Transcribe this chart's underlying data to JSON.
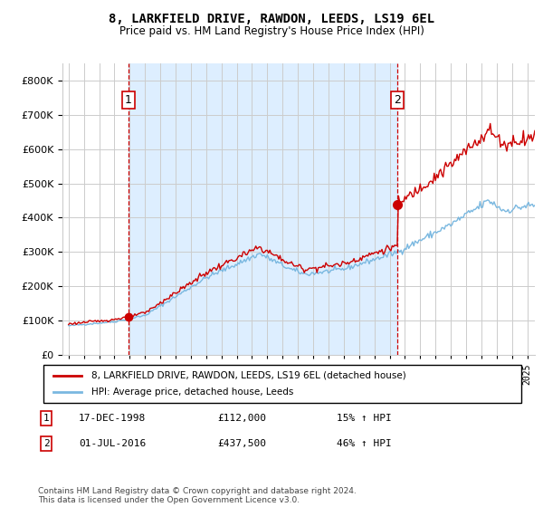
{
  "title": "8, LARKFIELD DRIVE, RAWDON, LEEDS, LS19 6EL",
  "subtitle": "Price paid vs. HM Land Registry's House Price Index (HPI)",
  "legend_line1": "8, LARKFIELD DRIVE, RAWDON, LEEDS, LS19 6EL (detached house)",
  "legend_line2": "HPI: Average price, detached house, Leeds",
  "purchase1_date": "17-DEC-1998",
  "purchase1_price": 112000,
  "purchase1_label": "15% ↑ HPI",
  "purchase2_date": "01-JUL-2016",
  "purchase2_price": 437500,
  "purchase2_label": "46% ↑ HPI",
  "footnote": "Contains HM Land Registry data © Crown copyright and database right 2024.\nThis data is licensed under the Open Government Licence v3.0.",
  "hpi_color": "#7ab8e0",
  "price_color": "#cc0000",
  "vline_color": "#cc0000",
  "marker_color": "#cc0000",
  "shade_color": "#ddeeff",
  "ylim": [
    0,
    850000
  ],
  "yticks": [
    0,
    100000,
    200000,
    300000,
    400000,
    500000,
    600000,
    700000,
    800000
  ],
  "background_color": "#ffffff",
  "grid_color": "#cccccc"
}
